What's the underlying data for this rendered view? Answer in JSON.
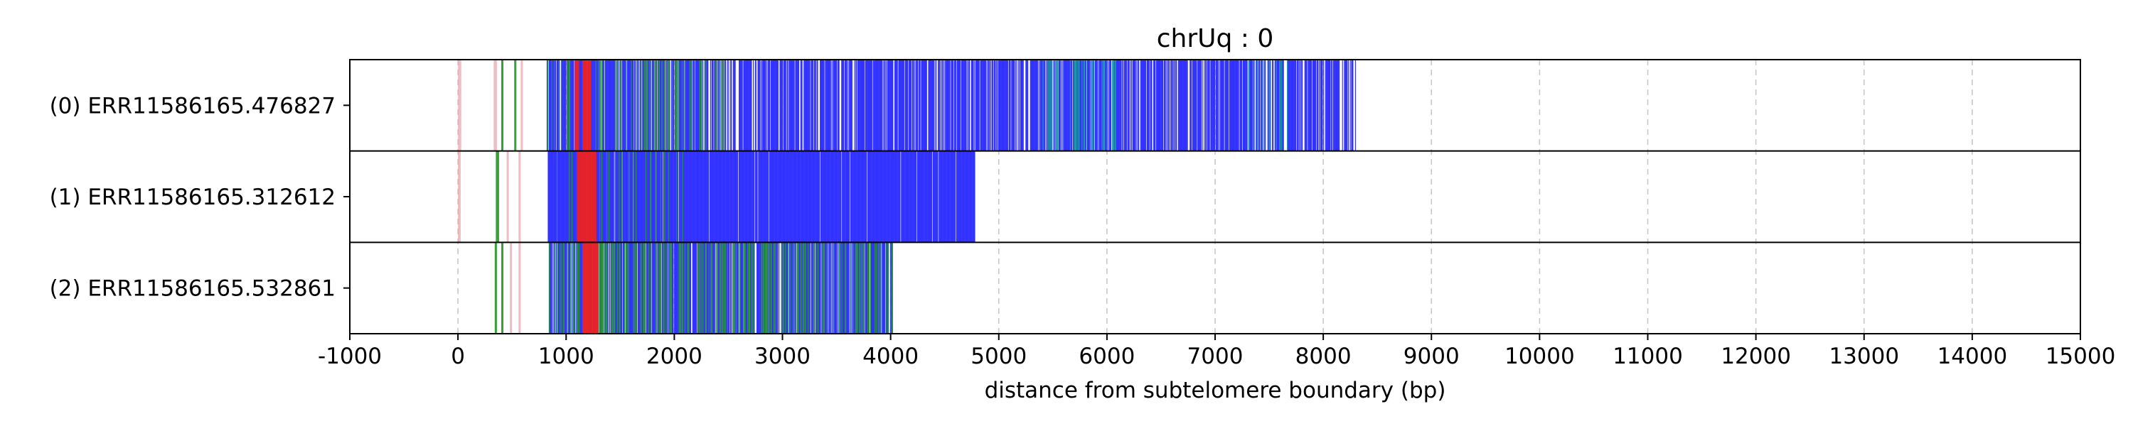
{
  "chart_data": {
    "type": "read-track",
    "title": "chrUq : 0",
    "xlabel": "distance from subtelomere boundary (bp)",
    "ylabel": "",
    "xlim": [
      -1000,
      15000
    ],
    "xticks": [
      -1000,
      0,
      1000,
      2000,
      3000,
      4000,
      5000,
      6000,
      7000,
      8000,
      9000,
      10000,
      11000,
      12000,
      13000,
      14000,
      15000
    ],
    "xtick_labels": [
      "-1000",
      "0",
      "1000",
      "2000",
      "3000",
      "4000",
      "5000",
      "6000",
      "7000",
      "8000",
      "9000",
      "10000",
      "11000",
      "12000",
      "13000",
      "14000",
      "15000"
    ],
    "grid": "vertical dashed",
    "colors": {
      "primary": "#3333ff",
      "secondary": "#2a9d2a",
      "tertiary": "#1fa5a5",
      "accent": "#ee2222",
      "minor": "#e8a0a8",
      "background": "#ffffff"
    },
    "reads": [
      {
        "label": "(0) ERR11586165.476827",
        "start": 820,
        "end": 8300,
        "segments": [
          {
            "start": 0,
            "end": 30,
            "color": "minor"
          },
          {
            "start": 330,
            "end": 360,
            "color": "minor"
          },
          {
            "start": 400,
            "end": 420,
            "color": "secondary"
          },
          {
            "start": 520,
            "end": 540,
            "color": "secondary"
          },
          {
            "start": 580,
            "end": 600,
            "color": "minor"
          },
          {
            "start": 820,
            "end": 8300,
            "color": "primary",
            "density": 0.78,
            "seed": 11
          },
          {
            "start": 820,
            "end": 2500,
            "color": "secondary",
            "density": 0.2,
            "seed": 12
          },
          {
            "start": 1080,
            "end": 1120,
            "color": "accent"
          },
          {
            "start": 1150,
            "end": 1230,
            "color": "accent"
          },
          {
            "start": 5400,
            "end": 6100,
            "color": "tertiary",
            "density": 0.25,
            "seed": 13
          },
          {
            "start": 7300,
            "end": 7700,
            "color": "tertiary",
            "density": 0.2,
            "seed": 14
          }
        ]
      },
      {
        "label": "(1) ERR11586165.312612",
        "start": 830,
        "end": 4780,
        "segments": [
          {
            "start": 0,
            "end": 25,
            "color": "minor"
          },
          {
            "start": 350,
            "end": 380,
            "color": "secondary"
          },
          {
            "start": 450,
            "end": 470,
            "color": "minor"
          },
          {
            "start": 560,
            "end": 580,
            "color": "minor"
          },
          {
            "start": 830,
            "end": 4780,
            "color": "primary",
            "density": 0.97,
            "seed": 21
          },
          {
            "start": 900,
            "end": 2200,
            "color": "secondary",
            "density": 0.1,
            "seed": 22
          },
          {
            "start": 1100,
            "end": 1280,
            "color": "accent"
          }
        ]
      },
      {
        "label": "(2) ERR11586165.532861",
        "start": 840,
        "end": 4020,
        "segments": [
          {
            "start": 340,
            "end": 360,
            "color": "secondary"
          },
          {
            "start": 400,
            "end": 420,
            "color": "secondary"
          },
          {
            "start": 480,
            "end": 500,
            "color": "minor"
          },
          {
            "start": 560,
            "end": 580,
            "color": "minor"
          },
          {
            "start": 840,
            "end": 4020,
            "color": "primary",
            "density": 0.85,
            "seed": 31
          },
          {
            "start": 840,
            "end": 4020,
            "color": "secondary",
            "density": 0.3,
            "seed": 32
          },
          {
            "start": 1150,
            "end": 1300,
            "color": "accent"
          }
        ]
      }
    ]
  }
}
